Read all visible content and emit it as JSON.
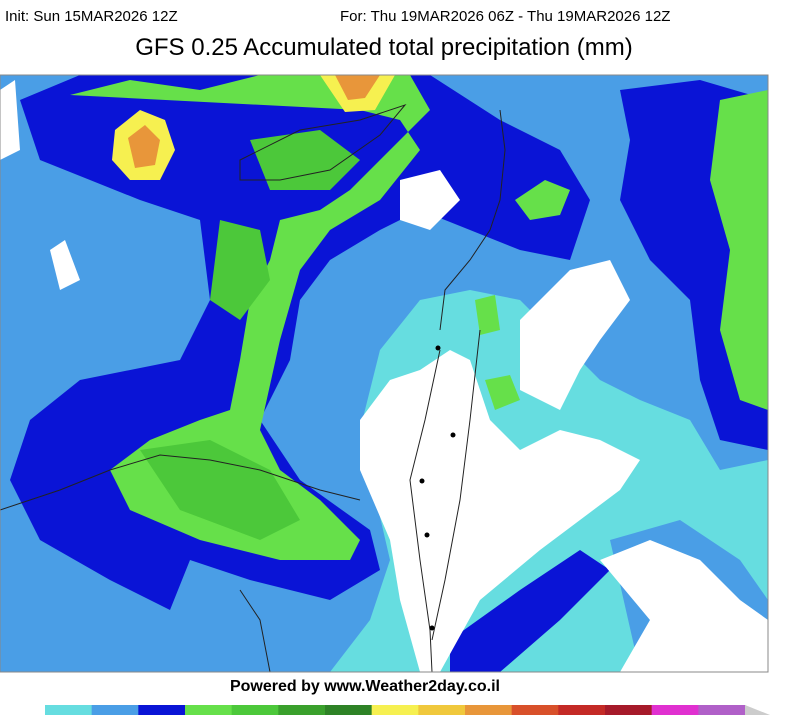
{
  "header": {
    "init": "Init: Sun 15MAR2026 12Z",
    "valid": "For: Thu 19MAR2026 06Z - Thu 19MAR2026 12Z",
    "title": "GFS 0.25 Accumulated total precipitation (mm)"
  },
  "footer": {
    "credit": "Powered by www.Weather2day.co.il"
  },
  "colorbar": {
    "colors": [
      "#66dde0",
      "#4a9ee6",
      "#0a14d6",
      "#66e04a",
      "#4cc83a",
      "#3aa02c",
      "#2e8226",
      "#f6f050",
      "#f0c83c",
      "#e8963a",
      "#d8502a",
      "#c42a26",
      "#a61a2a",
      "#e030d0",
      "#b060c8"
    ]
  }
}
